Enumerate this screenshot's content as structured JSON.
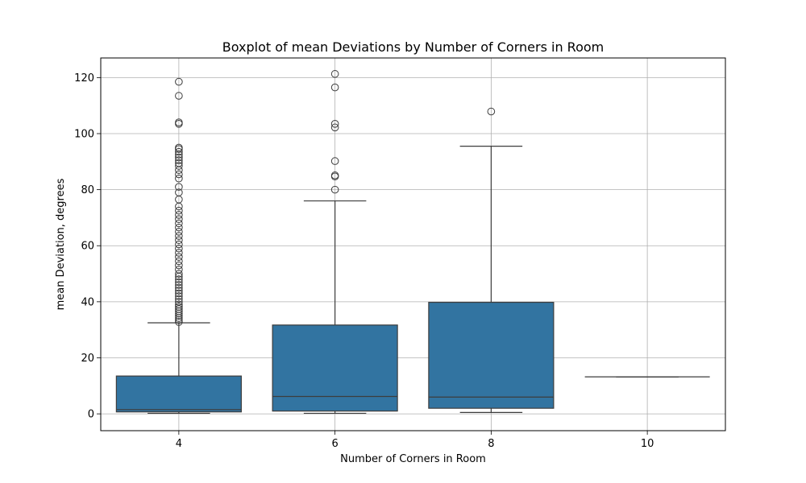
{
  "chart_data": {
    "type": "box",
    "title": "Boxplot of mean Deviations by Number of Corners in Room",
    "xlabel": "Number of Corners in Room",
    "ylabel": "mean Deviation, degrees",
    "categories": [
      "4",
      "6",
      "8",
      "10"
    ],
    "ylim": [
      -6,
      127
    ],
    "yticks": [
      0,
      20,
      40,
      60,
      80,
      100,
      120
    ],
    "grid": true,
    "box_color": "#3274a1",
    "line_color": "#3d3d3d",
    "boxes": [
      {
        "category": "4",
        "whisker_low": 0.2,
        "q1": 0.7,
        "median": 1.5,
        "q3": 13.5,
        "whisker_high": 32.5,
        "outliers": [
          32.8,
          33.5,
          34.2,
          35.0,
          35.8,
          36.6,
          37.4,
          38.2,
          39.0,
          40.0,
          41.0,
          42.0,
          43.0,
          44.0,
          45.0,
          46.0,
          47.0,
          48.0,
          49.0,
          50.0,
          51.5,
          53.0,
          54.5,
          56.0,
          57.5,
          59.0,
          60.5,
          62.0,
          63.5,
          65.0,
          66.5,
          68.0,
          69.5,
          71.0,
          72.5,
          74.0,
          76.5,
          79.0,
          81.0,
          84.0,
          85.5,
          87.0,
          88.5,
          89.5,
          90.5,
          91.5,
          92.5,
          93.5,
          94.5,
          95.0,
          103.5,
          104.0,
          113.5,
          118.5
        ]
      },
      {
        "category": "6",
        "whisker_low": 0.2,
        "q1": 1.0,
        "median": 6.2,
        "q3": 31.7,
        "whisker_high": 76.0,
        "outliers": [
          80.0,
          84.7,
          85.1,
          90.2,
          102.2,
          103.5,
          116.5,
          121.3
        ]
      },
      {
        "category": "8",
        "whisker_low": 0.5,
        "q1": 2.0,
        "median": 6.0,
        "q3": 39.8,
        "whisker_high": 95.5,
        "outliers": [
          107.9
        ]
      },
      {
        "category": "10",
        "whisker_low": 13.2,
        "q1": 13.2,
        "median": 13.2,
        "q3": 13.2,
        "whisker_high": 13.2,
        "outliers": []
      }
    ]
  }
}
